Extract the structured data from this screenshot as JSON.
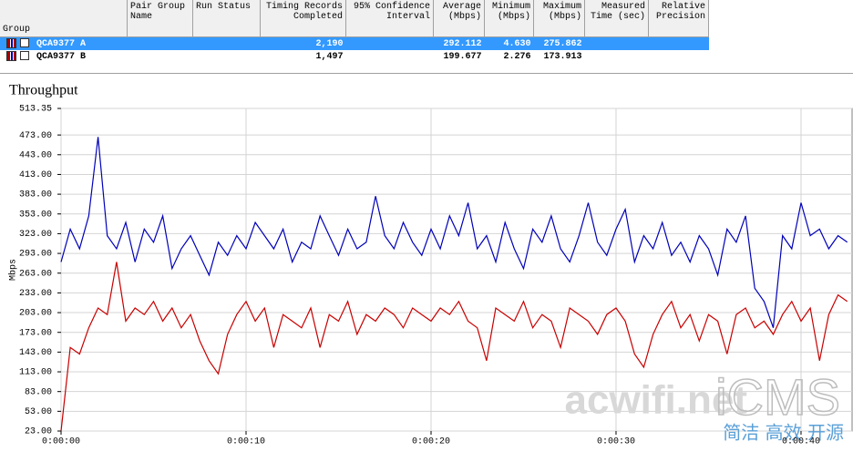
{
  "table": {
    "columns": [
      "Group",
      "Pair Group Name",
      "Run Status",
      "Timing Records Completed",
      "95% Confidence Interval",
      "Average (Mbps)",
      "Minimum (Mbps)",
      "Maximum (Mbps)",
      "Measured Time (sec)",
      "Relative Precision"
    ],
    "rows": [
      [
        "QCA9377 A",
        null,
        null,
        "2,190",
        null,
        "292.112",
        "4.630",
        "275.862",
        null,
        null
      ],
      [
        "QCA9377 B",
        null,
        null,
        "1,497",
        null,
        "199.677",
        "2.276",
        "173.913",
        null,
        null
      ]
    ]
  },
  "chart_data": {
    "type": "line",
    "title": "Throughput",
    "y_label": "Mbps",
    "x": [
      0,
      0.5,
      1,
      1.5,
      2,
      2.5,
      3,
      3.5,
      4,
      4.5,
      5,
      5.5,
      6,
      6.5,
      7,
      7.5,
      8,
      8.5,
      9,
      9.5,
      10,
      10.5,
      11,
      11.5,
      12,
      12.5,
      13,
      13.5,
      14,
      14.5,
      15,
      15.5,
      16,
      16.5,
      17,
      17.5,
      18,
      18.5,
      19,
      19.5,
      20,
      20.5,
      21,
      21.5,
      22,
      22.5,
      23,
      23.5,
      24,
      24.5,
      25,
      25.5,
      26,
      26.5,
      27,
      27.5,
      28,
      28.5,
      29,
      29.5,
      30,
      30.5,
      31,
      31.5,
      32,
      32.5,
      33,
      33.5,
      34,
      34.5,
      35,
      35.5,
      36,
      36.5,
      37,
      37.5,
      38,
      38.5,
      39,
      39.5,
      40,
      40.5,
      41,
      41.5,
      42,
      42.5
    ],
    "series": [
      {
        "name": "QCA9377 A",
        "color": "#0000b8",
        "values": [
          280,
          330,
          300,
          350,
          470,
          320,
          300,
          340,
          280,
          330,
          310,
          350,
          270,
          300,
          320,
          290,
          260,
          310,
          290,
          320,
          300,
          340,
          320,
          300,
          330,
          280,
          310,
          300,
          350,
          320,
          290,
          330,
          300,
          310,
          380,
          320,
          300,
          340,
          310,
          290,
          330,
          300,
          350,
          320,
          370,
          300,
          320,
          280,
          340,
          300,
          270,
          330,
          310,
          350,
          300,
          280,
          320,
          370,
          310,
          290,
          330,
          360,
          280,
          320,
          300,
          340,
          290,
          310,
          280,
          320,
          300,
          260,
          330,
          310,
          350,
          240,
          220,
          180,
          320,
          300,
          370,
          320,
          330,
          300,
          320,
          310
        ]
      },
      {
        "name": "QCA9377 B",
        "color": "#c80000",
        "values": [
          23,
          150,
          140,
          180,
          210,
          200,
          280,
          190,
          210,
          200,
          220,
          190,
          210,
          180,
          200,
          160,
          130,
          110,
          170,
          200,
          220,
          190,
          210,
          150,
          200,
          190,
          180,
          210,
          150,
          200,
          190,
          220,
          170,
          200,
          190,
          210,
          200,
          180,
          210,
          200,
          190,
          210,
          200,
          220,
          190,
          180,
          130,
          210,
          200,
          190,
          220,
          180,
          200,
          190,
          150,
          210,
          200,
          190,
          170,
          200,
          210,
          190,
          140,
          120,
          170,
          200,
          220,
          180,
          200,
          160,
          200,
          190,
          140,
          200,
          210,
          180,
          190,
          170,
          200,
          220,
          190,
          210,
          130,
          200,
          230,
          220
        ]
      }
    ],
    "xlim": [
      0,
      42.76
    ],
    "ylim": [
      23,
      513.35
    ],
    "xticks": [
      {
        "value": 0,
        "label": "0:00:00"
      },
      {
        "value": 10,
        "label": "0:00:10"
      },
      {
        "value": 20,
        "label": "0:00:20"
      },
      {
        "value": 30,
        "label": "0:00:30"
      },
      {
        "value": 40,
        "label": "0:00:40"
      }
    ],
    "yticks": [
      {
        "value": 23,
        "label": "23.00"
      },
      {
        "value": 53,
        "label": "53.00"
      },
      {
        "value": 83,
        "label": "83.00"
      },
      {
        "value": 113,
        "label": "113.00"
      },
      {
        "value": 143,
        "label": "143.00"
      },
      {
        "value": 173,
        "label": "173.00"
      },
      {
        "value": 203,
        "label": "203.00"
      },
      {
        "value": 233,
        "label": "233.00"
      },
      {
        "value": 263,
        "label": "263.00"
      },
      {
        "value": 293,
        "label": "293.00"
      },
      {
        "value": 323,
        "label": "323.00"
      },
      {
        "value": 353,
        "label": "353.00"
      },
      {
        "value": 383,
        "label": "383.00"
      },
      {
        "value": 413,
        "label": "413.00"
      },
      {
        "value": 443,
        "label": "443.00"
      },
      {
        "value": 473,
        "label": "473.00"
      },
      513.35
    ],
    "grid": true
  },
  "watermark": {
    "site": "acwifi.net",
    "brand": "iCMS",
    "slogan": "简洁 高效 开源"
  }
}
